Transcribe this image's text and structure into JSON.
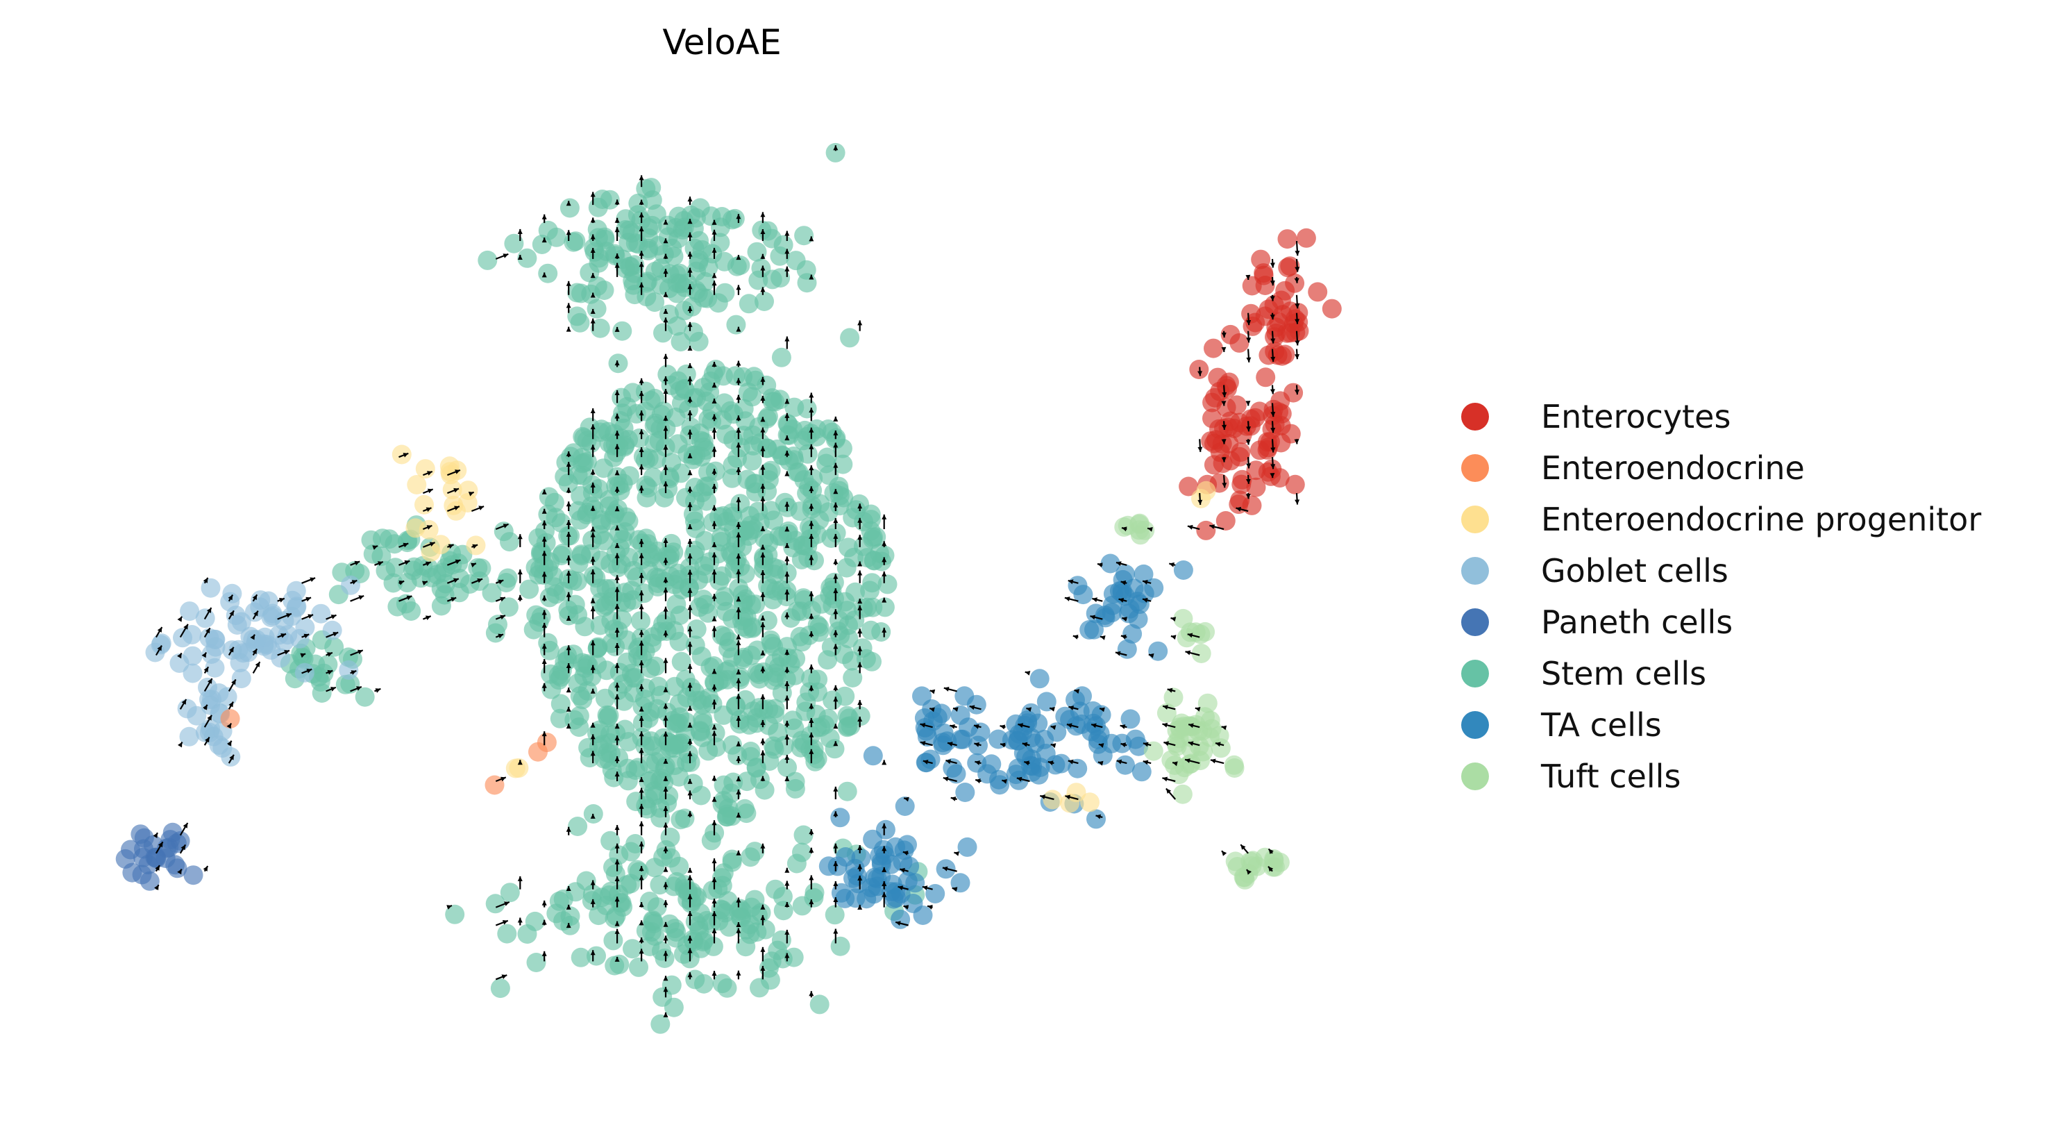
{
  "chart_data": {
    "type": "scatter",
    "title": "VeloAE",
    "xlabel": "",
    "ylabel": "",
    "axes_visible": false,
    "grid": false,
    "legend_position": "right",
    "overlay": "velocity-arrow-grid",
    "xlim": [
      0,
      100
    ],
    "ylim": [
      0,
      100
    ],
    "series": [
      {
        "name": "Enterocytes",
        "color": "#d73027",
        "count": 110,
        "clusters": [
          [
            93.5,
            80.0,
            2.5,
            6.0
          ],
          [
            90.5,
            67.0,
            3.5,
            7.0
          ]
        ]
      },
      {
        "name": "Enteroendocrine",
        "color": "#fc8d59",
        "count": 4,
        "points": [
          [
            11.5,
            37.0
          ],
          [
            35.6,
            33.5
          ],
          [
            36.3,
            34.5
          ],
          [
            32.2,
            30.0
          ]
        ]
      },
      {
        "name": "Enteroendocrine progenitor",
        "color": "#fee090",
        "count": 26,
        "clusters": [
          [
            28.5,
            60.5,
            2.5,
            4.5
          ],
          [
            33.5,
            32.0,
            1.0,
            1.5
          ],
          [
            87.0,
            61.5,
            1.0,
            1.0
          ],
          [
            78.0,
            29.0,
            1.5,
            1.5
          ]
        ]
      },
      {
        "name": "Goblet cells",
        "color": "#91bfdb",
        "count": 80,
        "clusters": [
          [
            13.5,
            46.5,
            5.0,
            4.5
          ],
          [
            10.0,
            37.0,
            1.7,
            4.5
          ]
        ]
      },
      {
        "name": "Paneth cells",
        "color": "#4575b4",
        "count": 24,
        "clusters": [
          [
            6.5,
            22.5,
            2.0,
            2.5
          ]
        ]
      },
      {
        "name": "Stem cells",
        "color": "#66c2a5",
        "count": 1180,
        "clusters": [
          [
            49.0,
            50.0,
            14.0,
            24.0
          ],
          [
            45.5,
            85.0,
            9.0,
            7.0
          ],
          [
            46.5,
            17.0,
            10.0,
            7.0
          ],
          [
            27.5,
            52.0,
            6.0,
            4.0
          ],
          [
            18.5,
            42.0,
            3.5,
            2.5
          ]
        ]
      },
      {
        "name": "TA cells",
        "color": "#3288bd",
        "count": 170,
        "clusters": [
          [
            72.0,
            35.0,
            6.0,
            5.0
          ],
          [
            63.5,
            21.0,
            5.0,
            4.0
          ],
          [
            81.5,
            50.0,
            2.5,
            5.0
          ],
          [
            79.0,
            36.0,
            3.0,
            3.0
          ]
        ]
      },
      {
        "name": "Tuft cells",
        "color": "#abdda4",
        "count": 68,
        "clusters": [
          [
            92.0,
            21.5,
            1.5,
            2.5
          ],
          [
            86.5,
            34.5,
            2.5,
            3.5
          ],
          [
            82.5,
            57.0,
            1.5,
            1.0
          ],
          [
            87.0,
            46.0,
            0.8,
            2.0
          ]
        ]
      }
    ]
  }
}
